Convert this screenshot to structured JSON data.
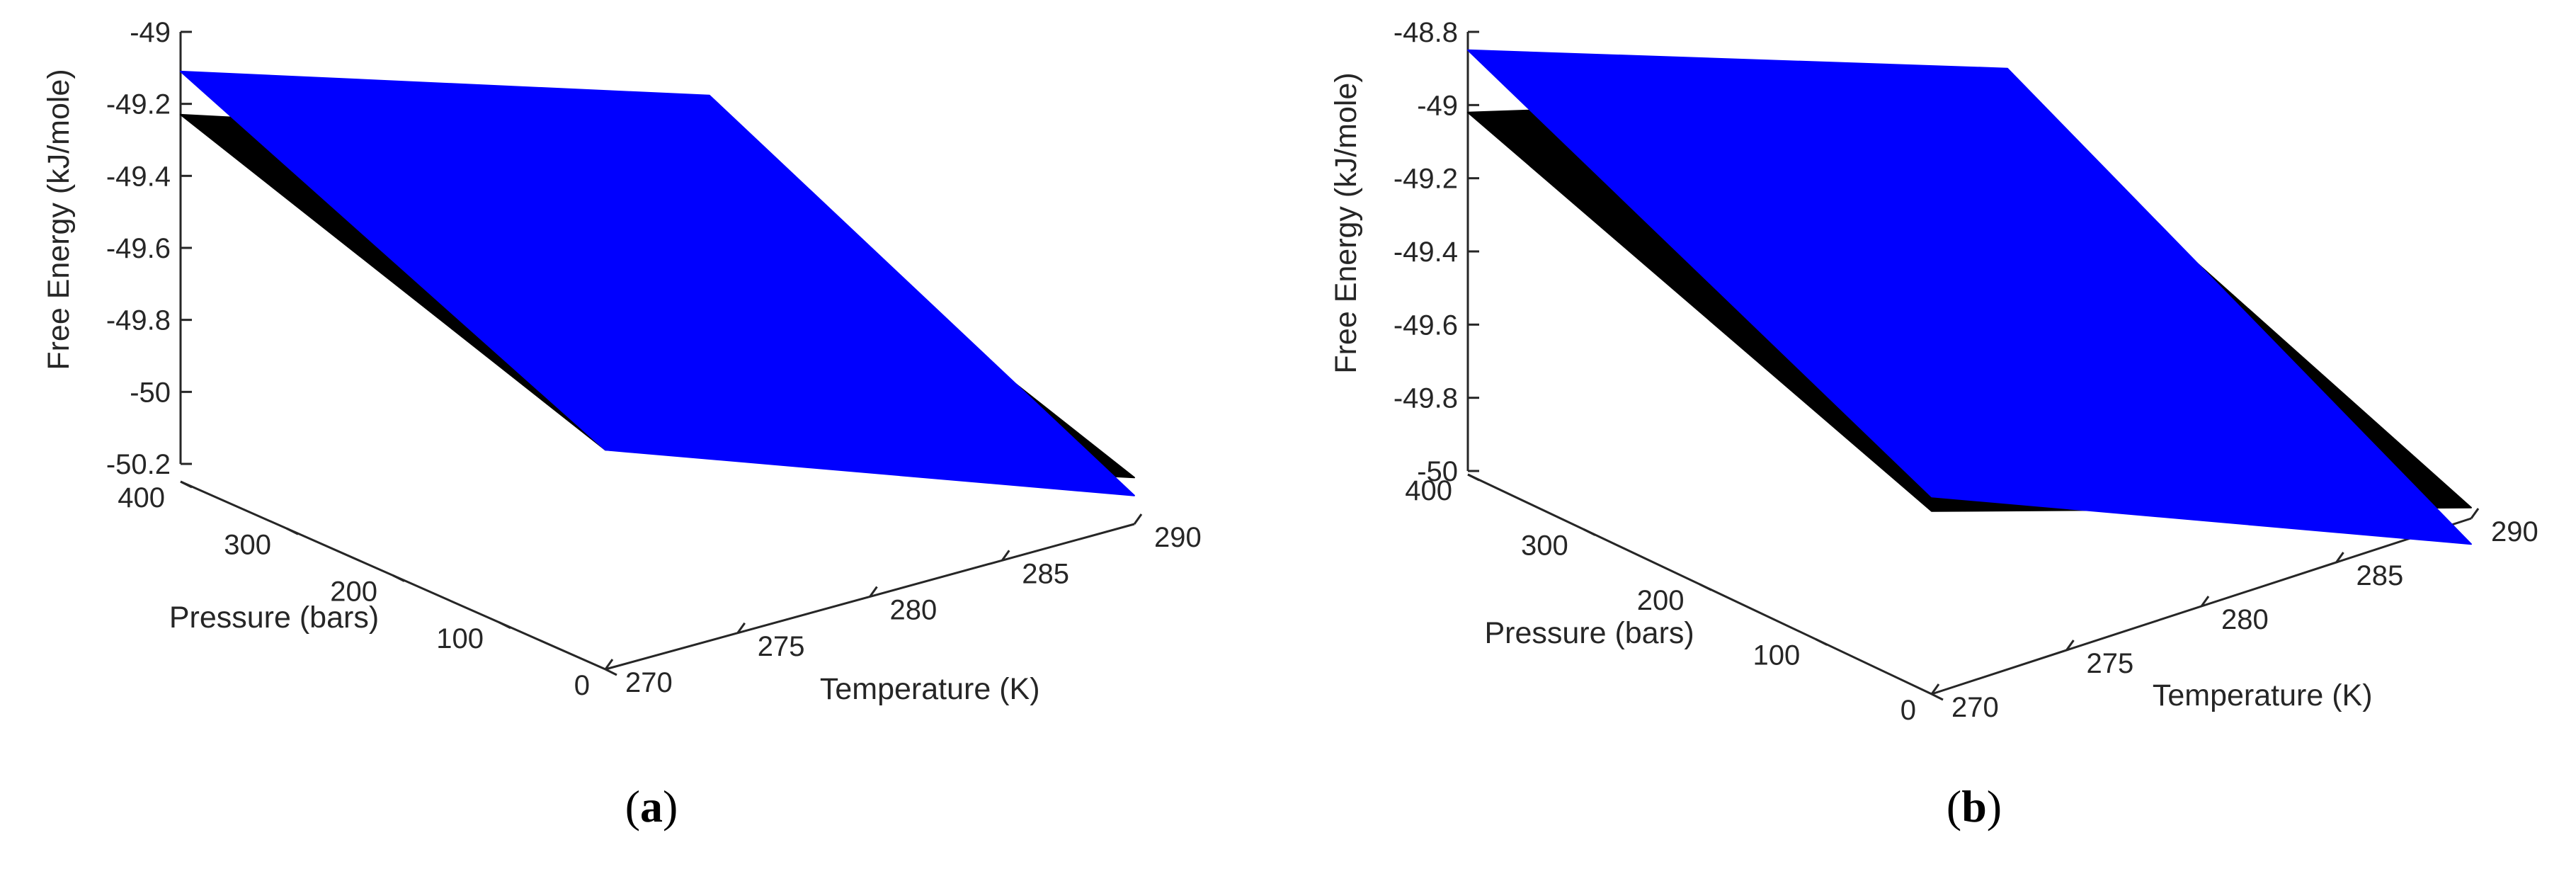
{
  "chart_data": [
    {
      "panel": "(a)",
      "panel_paren_open": "(",
      "panel_letter": "a",
      "panel_paren_close": ")",
      "type": "surface3d",
      "xlabel": "Temperature (K)",
      "ylabel": "Pressure (bars)",
      "zlabel": "Free Energy (kJ/mole)",
      "xlim": [
        270,
        290
      ],
      "ylim": [
        0,
        400
      ],
      "zlim": [
        -50.2,
        -49
      ],
      "xticks": [
        "270",
        "275",
        "280",
        "285",
        "290"
      ],
      "yticks": [
        "0",
        "100",
        "200",
        "300",
        "400"
      ],
      "zticks": [
        "-50.2",
        "-50",
        "-49.8",
        "-49.6",
        "-49.4",
        "-49.2",
        "-49"
      ],
      "series": [
        {
          "name": "black surface",
          "color": "#000000",
          "corners": [
            {
              "T": 270,
              "P": 400,
              "G": -49.23
            },
            {
              "T": 270,
              "P": 0,
              "G": -49.64
            },
            {
              "T": 290,
              "P": 0,
              "G": -50.12
            },
            {
              "T": 290,
              "P": 400,
              "G": -49.71
            }
          ]
        },
        {
          "name": "blue surface",
          "color": "#0000ff",
          "corners": [
            {
              "T": 270,
              "P": 400,
              "G": -49.11
            },
            {
              "T": 270,
              "P": 0,
              "G": -49.64
            },
            {
              "T": 290,
              "P": 0,
              "G": -50.17
            },
            {
              "T": 290,
              "P": 400,
              "G": -49.58
            }
          ]
        }
      ]
    },
    {
      "panel": "(b)",
      "panel_paren_open": "(",
      "panel_letter": "b",
      "panel_paren_close": ")",
      "type": "surface3d",
      "xlabel": "Temperature (K)",
      "ylabel": "Pressure (bars)",
      "zlabel": "Free Energy (kJ/mole)",
      "xlim": [
        270,
        290
      ],
      "ylim": [
        0,
        400
      ],
      "zlim": [
        -50,
        -48.8
      ],
      "xticks": [
        "270",
        "275",
        "280",
        "285",
        "290"
      ],
      "yticks": [
        "0",
        "100",
        "200",
        "300",
        "400"
      ],
      "zticks": [
        "-50",
        "-49.8",
        "-49.6",
        "-49.4",
        "-49.2",
        "-49",
        "-48.8"
      ],
      "series": [
        {
          "name": "black surface",
          "color": "#000000",
          "corners": [
            {
              "T": 270,
              "P": 400,
              "G": -49.02
            },
            {
              "T": 270,
              "P": 0,
              "G": -49.51
            },
            {
              "T": 290,
              "P": 0,
              "G": -49.98
            },
            {
              "T": 290,
              "P": 400,
              "G": -49.45
            }
          ]
        },
        {
          "name": "blue surface",
          "color": "#0000ff",
          "corners": [
            {
              "T": 270,
              "P": 400,
              "G": -48.85
            },
            {
              "T": 270,
              "P": 0,
              "G": -49.47
            },
            {
              "T": 290,
              "P": 0,
              "G": -50.08
            },
            {
              "T": 290,
              "P": 400,
              "G": -49.38
            }
          ]
        }
      ]
    }
  ]
}
